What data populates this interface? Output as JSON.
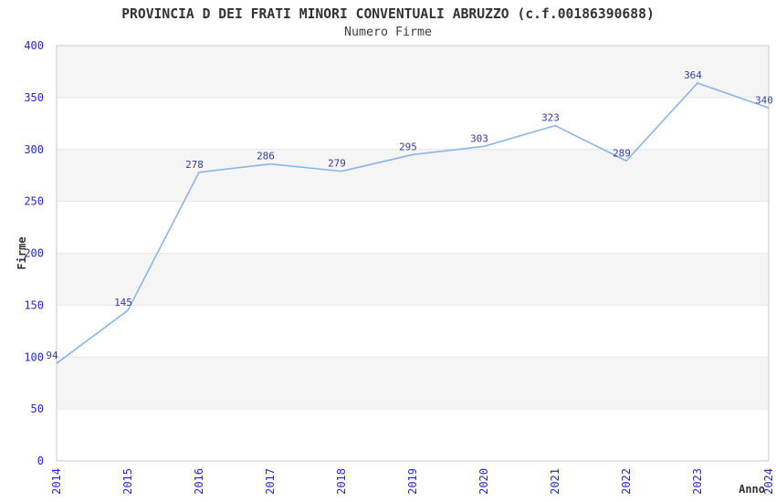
{
  "chart_data": {
    "type": "line",
    "title": "PROVINCIA D DEI FRATI MINORI CONVENTUALI ABRUZZO (c.f.00186390688)",
    "subtitle": "Numero Firme",
    "xlabel": "Anno",
    "ylabel": "Firme",
    "x": [
      "2014",
      "2015",
      "2016",
      "2017",
      "2018",
      "2019",
      "2020",
      "2021",
      "2022",
      "2023",
      "2024"
    ],
    "values": [
      94,
      145,
      278,
      286,
      279,
      295,
      303,
      323,
      289,
      364,
      340
    ],
    "ylim": [
      0,
      400
    ],
    "ytick_step": 50,
    "ytick_labels": [
      "0",
      "50",
      "100",
      "150",
      "200",
      "250",
      "300",
      "350",
      "400"
    ],
    "legend": "none",
    "grid": "horizontal-bands",
    "colors": {
      "line": "#8ab4e8",
      "point_label": "#363c9c",
      "tick_label": "#2626d8",
      "axis_title": "#333333",
      "band": "#f5f5f5",
      "gridline": "#e6e6e6",
      "border": "#c9c9c9"
    }
  }
}
